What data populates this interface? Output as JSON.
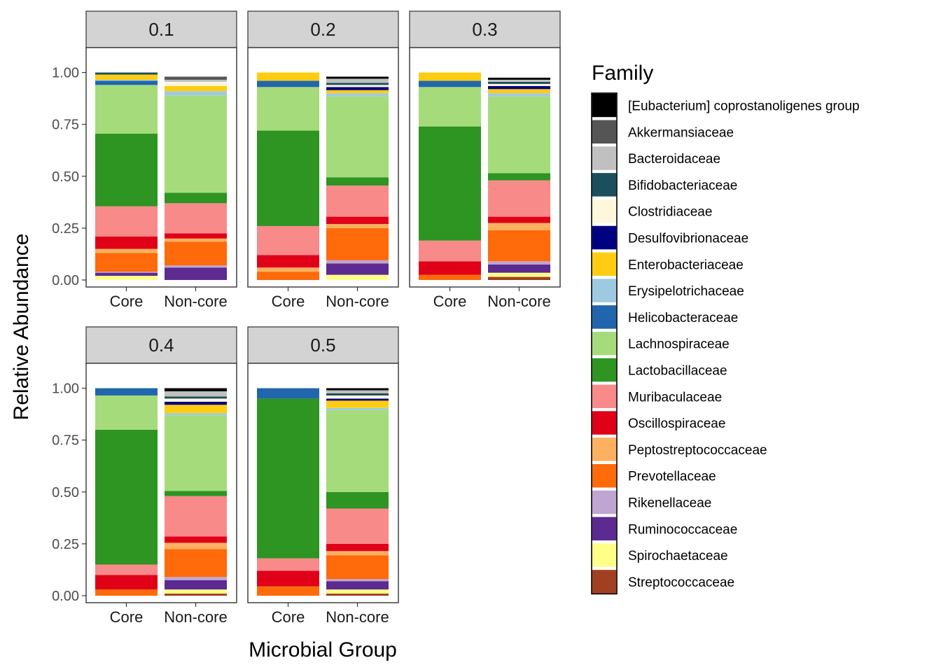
{
  "chart_data": {
    "type": "bar",
    "stacked": true,
    "xlabel": "Microbial Group",
    "ylabel": "Relative Abundance",
    "ylim": [
      0,
      1.12
    ],
    "yticks": [
      "0.00",
      "0.25",
      "0.50",
      "0.75",
      "1.00"
    ],
    "categories": [
      "Core",
      "Non-core"
    ],
    "legend": {
      "title": "Family",
      "placement": "right",
      "entries": [
        {
          "name": "[Eubacterium] coprostanoligenes group",
          "color": "#000000"
        },
        {
          "name": "Akkermansiaceae",
          "color": "#555555"
        },
        {
          "name": "Bacteroidaceae",
          "color": "#c0c0c0"
        },
        {
          "name": "Bifidobacteriaceae",
          "color": "#1b4f5c"
        },
        {
          "name": "Clostridiaceae",
          "color": "#fff7dc"
        },
        {
          "name": "Desulfovibrionaceae",
          "color": "#000080"
        },
        {
          "name": "Enterobacteriaceae",
          "color": "#ffcc11"
        },
        {
          "name": "Erysipelotrichaceae",
          "color": "#9ecae1"
        },
        {
          "name": "Helicobacteraceae",
          "color": "#2166ac"
        },
        {
          "name": "Lachnospiraceae",
          "color": "#a6db7c"
        },
        {
          "name": "Lactobacillaceae",
          "color": "#2e9422"
        },
        {
          "name": "Muribaculaceae",
          "color": "#f88a8a"
        },
        {
          "name": "Oscillospiraceae",
          "color": "#e00018"
        },
        {
          "name": "Peptostreptococcaceae",
          "color": "#fdb060"
        },
        {
          "name": "Prevotellaceae",
          "color": "#ff6a0a"
        },
        {
          "name": "Rikenellaceae",
          "color": "#bfa5d2"
        },
        {
          "name": "Ruminococcaceae",
          "color": "#5c2a91"
        },
        {
          "name": "Spirochaetaceae",
          "color": "#ffff88"
        },
        {
          "name": "Streptococcaceae",
          "color": "#a04020"
        }
      ]
    },
    "stack_order": [
      "Streptococcaceae",
      "Spirochaetaceae",
      "Ruminococcaceae",
      "Rikenellaceae",
      "Prevotellaceae",
      "Peptostreptococcaceae",
      "Oscillospiraceae",
      "Muribaculaceae",
      "Lactobacillaceae",
      "Lachnospiraceae",
      "Helicobacteraceae",
      "Erysipelotrichaceae",
      "Enterobacteriaceae",
      "Desulfovibrionaceae",
      "Clostridiaceae",
      "Bifidobacteriaceae",
      "Bacteroidaceae",
      "Akkermansiaceae",
      "[Eubacterium] coprostanoligenes group"
    ],
    "panels": [
      {
        "label": "0.1",
        "bars": [
          {
            "category": "Core",
            "values": {
              "Spirochaetaceae": 0.02,
              "Ruminococcaceae": 0.015,
              "Rikenellaceae": 0.005,
              "Prevotellaceae": 0.09,
              "Peptostreptococcaceae": 0.02,
              "Oscillospiraceae": 0.06,
              "Muribaculaceae": 0.145,
              "Lactobacillaceae": 0.35,
              "Lachnospiraceae": 0.235,
              "Helicobacteraceae": 0.02,
              "Erysipelotrichaceae": 0.005,
              "Enterobacteriaceae": 0.025,
              "Bifidobacteriaceae": 0.01
            }
          },
          {
            "category": "Non-core",
            "values": {
              "Ruminococcaceae": 0.06,
              "Rikenellaceae": 0.01,
              "Prevotellaceae": 0.115,
              "Peptostreptococcaceae": 0.015,
              "Oscillospiraceae": 0.025,
              "Muribaculaceae": 0.145,
              "Lactobacillaceae": 0.05,
              "Lachnospiraceae": 0.47,
              "Erysipelotrichaceae": 0.02,
              "Enterobacteriaceae": 0.025,
              "Clostridiaceae": 0.02,
              "Bacteroidaceae": 0.01,
              "Akkermansiaceae": 0.015
            }
          }
        ]
      },
      {
        "label": "0.2",
        "bars": [
          {
            "category": "Core",
            "values": {
              "Prevotellaceae": 0.04,
              "Peptostreptococcaceae": 0.02,
              "Oscillospiraceae": 0.06,
              "Muribaculaceae": 0.14,
              "Lactobacillaceae": 0.46,
              "Lachnospiraceae": 0.21,
              "Helicobacteraceae": 0.03,
              "Enterobacteriaceae": 0.04
            }
          },
          {
            "category": "Non-core",
            "values": {
              "Spirochaetaceae": 0.025,
              "Ruminococcaceae": 0.055,
              "Rikenellaceae": 0.015,
              "Prevotellaceae": 0.155,
              "Peptostreptococcaceae": 0.02,
              "Oscillospiraceae": 0.035,
              "Muribaculaceae": 0.15,
              "Lactobacillaceae": 0.04,
              "Lachnospiraceae": 0.39,
              "Erysipelotrichaceae": 0.015,
              "Enterobacteriaceae": 0.015,
              "Desulfovibrionaceae": 0.015,
              "Clostridiaceae": 0.01,
              "Bifidobacteriaceae": 0.01,
              "Bacteroidaceae": 0.02,
              "[Eubacterium] coprostanoligenes group": 0.01
            }
          }
        ]
      },
      {
        "label": "0.3",
        "bars": [
          {
            "category": "Core",
            "values": {
              "Prevotellaceae": 0.025,
              "Oscillospiraceae": 0.065,
              "Muribaculaceae": 0.1,
              "Lactobacillaceae": 0.55,
              "Lachnospiraceae": 0.19,
              "Helicobacteraceae": 0.03,
              "Enterobacteriaceae": 0.04
            }
          },
          {
            "category": "Non-core",
            "values": {
              "Streptococcaceae": 0.015,
              "Spirochaetaceae": 0.02,
              "Ruminococcaceae": 0.04,
              "Rikenellaceae": 0.015,
              "Prevotellaceae": 0.15,
              "Peptostreptococcaceae": 0.035,
              "Oscillospiraceae": 0.03,
              "Muribaculaceae": 0.175,
              "Lactobacillaceae": 0.035,
              "Lachnospiraceae": 0.37,
              "Erysipelotrichaceae": 0.015,
              "Enterobacteriaceae": 0.02,
              "Desulfovibrionaceae": 0.015,
              "Clostridiaceae": 0.01,
              "Bifidobacteriaceae": 0.01,
              "Bacteroidaceae": 0.01,
              "[Eubacterium] coprostanoligenes group": 0.01
            }
          }
        ]
      },
      {
        "label": "0.4",
        "bars": [
          {
            "category": "Core",
            "values": {
              "Prevotellaceae": 0.03,
              "Oscillospiraceae": 0.07,
              "Muribaculaceae": 0.05,
              "Lactobacillaceae": 0.65,
              "Lachnospiraceae": 0.165,
              "Helicobacteraceae": 0.035
            }
          },
          {
            "category": "Non-core",
            "values": {
              "Streptococcaceae": 0.01,
              "Spirochaetaceae": 0.02,
              "Ruminococcaceae": 0.045,
              "Rikenellaceae": 0.015,
              "Prevotellaceae": 0.135,
              "Peptostreptococcaceae": 0.03,
              "Oscillospiraceae": 0.03,
              "Muribaculaceae": 0.195,
              "Lactobacillaceae": 0.025,
              "Lachnospiraceae": 0.365,
              "Erysipelotrichaceae": 0.01,
              "Enterobacteriaceae": 0.04,
              "Desulfovibrionaceae": 0.015,
              "Clostridiaceae": 0.015,
              "Bifidobacteriaceae": 0.01,
              "Bacteroidaceae": 0.025,
              "[Eubacterium] coprostanoligenes group": 0.015
            }
          }
        ]
      },
      {
        "label": "0.5",
        "bars": [
          {
            "category": "Core",
            "values": {
              "Prevotellaceae": 0.045,
              "Oscillospiraceae": 0.075,
              "Muribaculaceae": 0.06,
              "Lactobacillaceae": 0.77,
              "Helicobacteraceae": 0.05
            }
          },
          {
            "category": "Non-core",
            "values": {
              "Streptococcaceae": 0.01,
              "Spirochaetaceae": 0.02,
              "Ruminococcaceae": 0.04,
              "Rikenellaceae": 0.01,
              "Prevotellaceae": 0.115,
              "Peptostreptococcaceae": 0.02,
              "Oscillospiraceae": 0.035,
              "Muribaculaceae": 0.17,
              "Lactobacillaceae": 0.08,
              "Lachnospiraceae": 0.395,
              "Erysipelotrichaceae": 0.01,
              "Enterobacteriaceae": 0.035,
              "Desulfovibrionaceae": 0.01,
              "Clostridiaceae": 0.015,
              "Bifidobacteriaceae": 0.01,
              "Bacteroidaceae": 0.015,
              "[Eubacterium] coprostanoligenes group": 0.01
            }
          }
        ]
      }
    ]
  }
}
